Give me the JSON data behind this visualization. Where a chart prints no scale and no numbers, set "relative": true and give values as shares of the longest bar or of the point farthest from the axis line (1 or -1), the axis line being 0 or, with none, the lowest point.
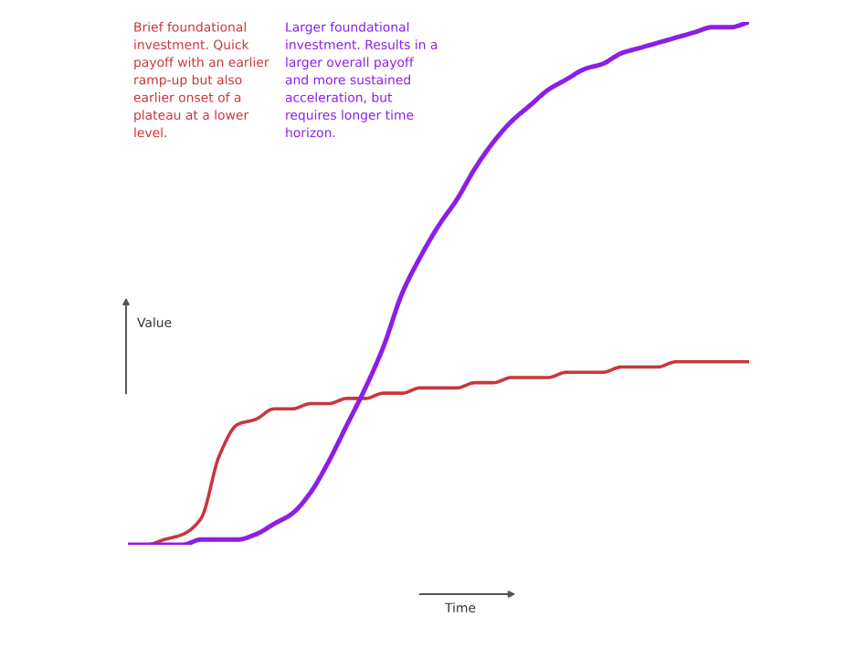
{
  "chart_data": {
    "type": "line",
    "relative": true,
    "xlabel": "Time",
    "ylabel": "Value",
    "categories": [
      null,
      null,
      null,
      null,
      null,
      null,
      null,
      null,
      null,
      null,
      null,
      null,
      null,
      null,
      null,
      null,
      null,
      null,
      null,
      null,
      null,
      null,
      null,
      null,
      null,
      null,
      null,
      null,
      null,
      null,
      null,
      null,
      null,
      null,
      null
    ],
    "series": [
      {
        "color": "#c8373c",
        "values": [
          0,
          0.0,
          0.01,
          0.02,
          0.05,
          0.17,
          0.23,
          0.24,
          0.26,
          0.26,
          0.27,
          0.27,
          0.28,
          0.28,
          0.29,
          0.29,
          0.3,
          0.3,
          0.3,
          0.31,
          0.31,
          0.32,
          0.32,
          0.32,
          0.33,
          0.33,
          0.33,
          0.34,
          0.34,
          0.34,
          0.35,
          0.35,
          0.35,
          0.35,
          0.35
        ]
      },
      {
        "color": "#8c1ee6",
        "values": [
          0,
          0,
          0.0,
          0.0,
          0.01,
          0.01,
          0.01,
          0.02,
          0.04,
          0.06,
          0.1,
          0.16,
          0.23,
          0.3,
          0.38,
          0.48,
          0.55,
          0.61,
          0.66,
          0.72,
          0.77,
          0.81,
          0.84,
          0.87,
          0.89,
          0.91,
          0.92,
          0.94,
          0.95,
          0.96,
          0.97,
          0.98,
          0.99,
          0.99,
          1
        ]
      }
    ],
    "annotations": [
      "Brief foundational\ninvestment. Quick\npayoff with an earlier\nramp-up but also\nearlier onset of a\nplateau at a lower\nlevel.",
      "Larger foundational\ninvestment. Results in a\nlarger overall payoff\nand more sustained\nacceleration, but\nrequires longer time\nhorizon."
    ],
    "grid": false,
    "legend": false,
    "marker": "none",
    "line_style": "solid"
  }
}
